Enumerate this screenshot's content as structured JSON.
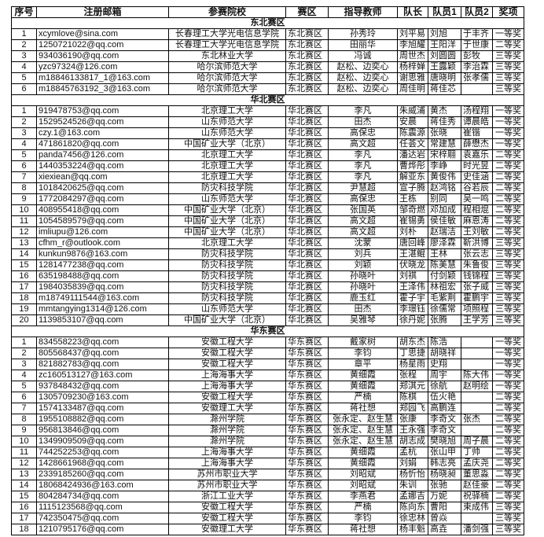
{
  "headers": [
    "序号",
    "注册邮箱",
    "参赛院校",
    "赛区",
    "指导教师",
    "队长",
    "队员1",
    "队员2",
    "奖项"
  ],
  "sections": [
    {
      "title": "东北赛区",
      "rows": [
        [
          "1",
          "xcymlove@sina.com",
          "长春理工大学光电信息学院",
          "东北赛区",
          "孙秀玲",
          "刘平易",
          "刘旭",
          "于丰齐",
          "一等奖"
        ],
        [
          "2",
          "1250721022@qq.com",
          "长春理工大学光电信息学院",
          "东北赛区",
          "田丽华",
          "李旭耀",
          "王阳洋",
          "于世康",
          "二等奖"
        ],
        [
          "3",
          "934036190@qq.com",
          "东北林业大学",
          "东北赛区",
          "冯诚",
          "周世杰",
          "刘圆圆",
          "彭牧",
          "三等奖"
        ],
        [
          "4",
          "yzc97324@126.com",
          "哈尔滨师范大学",
          "东北赛区",
          "赵松、边奕心",
          "杨梓婵",
          "王露颖",
          "李治霖",
          "三等奖"
        ],
        [
          "5",
          "m18846133817_1@163.com",
          "哈尔滨师范大学",
          "东北赛区",
          "赵松、边奕心",
          "谢思雅",
          "唐晓明",
          "张孝儒",
          "三等奖"
        ],
        [
          "6",
          "m18845763192_3@163.com",
          "哈尔滨师范大学",
          "东北赛区",
          "赵松、边奕心",
          "周佳明",
          "蒋佳芯",
          "",
          "三等奖"
        ]
      ]
    },
    {
      "title": "华北赛区",
      "rows": [
        [
          "1",
          "919478753@qq.com",
          "北京理工大学",
          "华北赛区",
          "李凡",
          "朱威浦",
          "黄杰",
          "汤程翔",
          "一等奖"
        ],
        [
          "2",
          "1529524526@qq.com",
          "山东师范大学",
          "华北赛区",
          "田杰",
          "安晨",
          "蒋佳秀",
          "谭晨皓",
          "一等奖"
        ],
        [
          "3",
          "czy.1@163.com",
          "山东师范大学",
          "华北赛区",
          "高保忠",
          "陈震源",
          "张晓",
          "崔锴",
          "一等奖"
        ],
        [
          "4",
          "471861820@qq.com",
          "中国矿业大学（北京）",
          "华北赛区",
          "高文超",
          "任荟文",
          "常建慧",
          "薛懋杰",
          "一等奖"
        ],
        [
          "5",
          "panda7456@126.com",
          "北京理工大学",
          "华北赛区",
          "李凡",
          "潘达岩",
          "宋梓翢",
          "袁嘉乐",
          "二等奖"
        ],
        [
          "6",
          "1440353224@qq.com",
          "北京理工大学",
          "华北赛区",
          "李凡",
          "曹烨彤",
          "李峥",
          "时光昱",
          "二等奖"
        ],
        [
          "7",
          "xiexiean@qq.com",
          "北京理工大学",
          "华北赛区",
          "李凡",
          "解亚东",
          "黄俊伟",
          "史佳涵",
          "二等奖"
        ],
        [
          "8",
          "1018420625@qq.com",
          "防灾科技学院",
          "华北赛区",
          "尹慧超",
          "宣子腾",
          "赵鸿铭",
          "谷若辰",
          "二等奖"
        ],
        [
          "9",
          "1772084297@qq.com",
          "山东师范大学",
          "华北赛区",
          "高保忠",
          "王栋",
          "别同",
          "吴一鸣",
          "二等奖"
        ],
        [
          "10",
          "408955418@qq.com",
          "中国矿业大学（北京）",
          "华北赛区",
          "张国英",
          "邹奇燃",
          "邓加成",
          "程相焜",
          "二等奖"
        ],
        [
          "11",
          "1054589579@qq.com",
          "中国矿业大学（北京）",
          "华北赛区",
          "高文超",
          "崔锡勇",
          "侯佳敏",
          "麻恩涛",
          "二等奖"
        ],
        [
          "12",
          "imliupu@126.com",
          "中国矿业大学（北京）",
          "华北赛区",
          "高文超",
          "刘朴",
          "赵瑞洁",
          "王刘敏",
          "二等奖"
        ],
        [
          "13",
          "cfhm_r@outlook.com",
          "北京理工大学",
          "华北赛区",
          "沈蒙",
          "唐回峰",
          "廖泽霖",
          "靳洪博",
          "三等奖"
        ],
        [
          "14",
          "kunkun9876@163.com",
          "防灾科技学院",
          "华北赛区",
          "刘兵",
          "王湛鲲",
          "王林",
          "张云志",
          "三等奖"
        ],
        [
          "15",
          "1281477238@qq.com",
          "防灾科技学院",
          "华北赛区",
          "刘颖",
          "伏晓龙",
          "陈美慧",
          "朱鲁俊",
          "三等奖"
        ],
        [
          "16",
          "635198488@qq.com",
          "防灾科技学院",
          "华北赛区",
          "孙晓叶",
          "刘祺",
          "付剑颖",
          "钱锦程",
          "三等奖"
        ],
        [
          "17",
          "1984035839@qq.com",
          "防灾科技学院",
          "华北赛区",
          "孙晓叶",
          "王泽伟",
          "林祖宏",
          "张子威",
          "三等奖"
        ],
        [
          "18",
          "m18749111544@163.com",
          "防灾科技学院",
          "华北赛区",
          "鹿玉红",
          "霍子宇",
          "毛紫荆",
          "霍鹏宇",
          "三等奖"
        ],
        [
          "19",
          "mmtangying1314@126.com",
          "山东师范大学",
          "华北赛区",
          "田杰",
          "李璟钰",
          "徐儒常",
          "项照程",
          "三等奖"
        ],
        [
          "20",
          "1139853107@qq.com",
          "中国矿业大学（北京）",
          "华北赛区",
          "吴雅琴",
          "徐丹妮",
          "张腾",
          "王学芳",
          "三等奖"
        ]
      ]
    },
    {
      "title": "华东赛区",
      "rows": [
        [
          "1",
          "834558223@qq.com",
          "安徽工程大学",
          "华东赛区",
          "戴家树",
          "胡东杰",
          "陈浩",
          "",
          "一等奖"
        ],
        [
          "2",
          "805568437@qq.com",
          "安徽工程大学",
          "华东赛区",
          "李钧",
          "丁思捷",
          "胡晓祥",
          "",
          "一等奖"
        ],
        [
          "3",
          "821882783@qq.com",
          "安徽工程大学",
          "华东赛区",
          "章平",
          "杨星雨",
          "史翔",
          "",
          "一等奖"
        ],
        [
          "4",
          "zc160513127@163.com",
          "上海海事大学",
          "华东赛区",
          "黄细霞",
          "张程",
          "周宇",
          "陈大伟",
          "一等奖"
        ],
        [
          "5",
          "937848432@qq.com",
          "上海海事大学",
          "华东赛区",
          "黄细霞",
          "郑淇元",
          "徐航",
          "赵明绘",
          "一等奖"
        ],
        [
          "6",
          "1305709230@163.com",
          "安徽工程大学",
          "华东赛区",
          "严楠",
          "陈棋",
          "伍火艳",
          "",
          "二等奖"
        ],
        [
          "7",
          "1574133487@qq.com",
          "安徽理工大学",
          "华东赛区",
          "蒋社想",
          "郑园飞",
          "高鹏连",
          "",
          "二等奖"
        ],
        [
          "8",
          "1955108882@qq.com",
          "滁州学院",
          "华东赛区",
          "张永定、赵生慧",
          "张康",
          "李奇文",
          "张杰",
          "二等奖"
        ],
        [
          "9",
          "956813846@qq.com",
          "滁州学院",
          "华东赛区",
          "张永定、赵生慧",
          "王永强",
          "李奇文",
          "",
          "二等奖"
        ],
        [
          "10",
          "1349909509@qq.com",
          "滁州学院",
          "华东赛区",
          "张永定、赵生慧",
          "胡志成",
          "樊晓旭",
          "周子晨",
          "二等奖"
        ],
        [
          "11",
          "744252253@qq.com",
          "上海海事大学",
          "华东赛区",
          "黄细霞",
          "孟杭",
          "张山甲",
          "丁帅",
          "二等奖"
        ],
        [
          "12",
          "1428661968@qq.com",
          "上海海事大学",
          "华东赛区",
          "黄细霞",
          "刘娟",
          "韩志亮",
          "孟庆尧",
          "二等奖"
        ],
        [
          "13",
          "2339185260@qq.com",
          "苏州市职业大学",
          "华东赛区",
          "刘昭斌",
          "杨忻怡",
          "杨晓昶",
          "董思淼",
          "二等奖"
        ],
        [
          "14",
          "18068424936@163.com",
          "苏州市职业大学",
          "华东赛区",
          "刘昭斌",
          "朱训",
          "张驰",
          "赵佳豪",
          "二等奖"
        ],
        [
          "15",
          "804284734@qq.com",
          "浙江工业大学",
          "华东赛区",
          "李燕君",
          "孟娜吉",
          "万妮",
          "祝驿楠",
          "二等奖"
        ],
        [
          "16",
          "1115123568@qq.com",
          "安徽工程大学",
          "华东赛区",
          "严楠",
          "陈向东",
          "曹阳",
          "束成伟",
          "三等奖"
        ],
        [
          "17",
          "742350475@qq.com",
          "安徽工程大学",
          "华东赛区",
          "李钧",
          "徐忠林",
          "曾焱",
          "",
          "三等奖"
        ],
        [
          "18",
          "1210795176@qq.com",
          "安徽理工大学",
          "华东赛区",
          "蒋社想",
          "杨丰魁",
          "高垚",
          "潘剑强",
          "三等奖"
        ]
      ]
    }
  ]
}
